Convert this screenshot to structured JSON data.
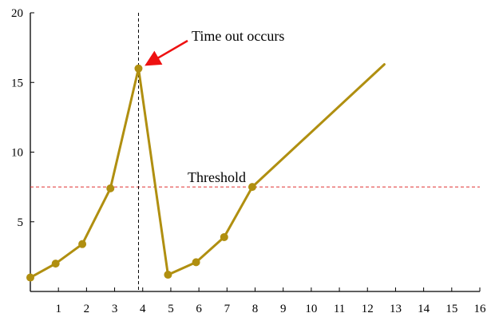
{
  "chart_data": {
    "type": "line",
    "title": "",
    "xlabel": "",
    "ylabel": "",
    "xlim": [
      0,
      16
    ],
    "ylim": [
      0,
      20
    ],
    "x_ticks": [
      1,
      2,
      3,
      4,
      5,
      6,
      7,
      8,
      9,
      10,
      11,
      12,
      13,
      14,
      15,
      16
    ],
    "y_ticks": [
      5,
      10,
      15,
      20
    ],
    "x_tick_labels": [
      "1",
      "2",
      "3",
      "4",
      "5",
      "6",
      "7",
      "8",
      "9",
      "10",
      "11",
      "12",
      "13",
      "14",
      "15",
      "16"
    ],
    "y_tick_labels": [
      "5",
      "10",
      "15",
      "20"
    ],
    "grid": false,
    "series": [
      {
        "color": "#b08f10",
        "points": [
          {
            "x": 0,
            "y": 1.0,
            "marker": true
          },
          {
            "x": 0.9,
            "y": 2.0,
            "marker": true
          },
          {
            "x": 1.85,
            "y": 3.4,
            "marker": true
          },
          {
            "x": 2.85,
            "y": 7.4,
            "marker": true
          },
          {
            "x": 3.85,
            "y": 16.0,
            "marker": true
          },
          {
            "x": 4.9,
            "y": 1.2,
            "marker": true
          },
          {
            "x": 5.9,
            "y": 2.1,
            "marker": true
          },
          {
            "x": 6.9,
            "y": 3.9,
            "marker": true
          },
          {
            "x": 7.9,
            "y": 7.5,
            "marker": true
          },
          {
            "x": 12.6,
            "y": 16.3,
            "marker": false
          }
        ]
      }
    ],
    "threshold": {
      "y": 7.5,
      "label": "Threshold",
      "color": "#e03030"
    },
    "vertical_marker": {
      "x": 3.85,
      "color": "#000000"
    },
    "annotations": [
      {
        "text": "Time out occurs",
        "target_x": 3.85,
        "target_y": 16.0,
        "arrow_color": "#ee1111"
      }
    ]
  }
}
